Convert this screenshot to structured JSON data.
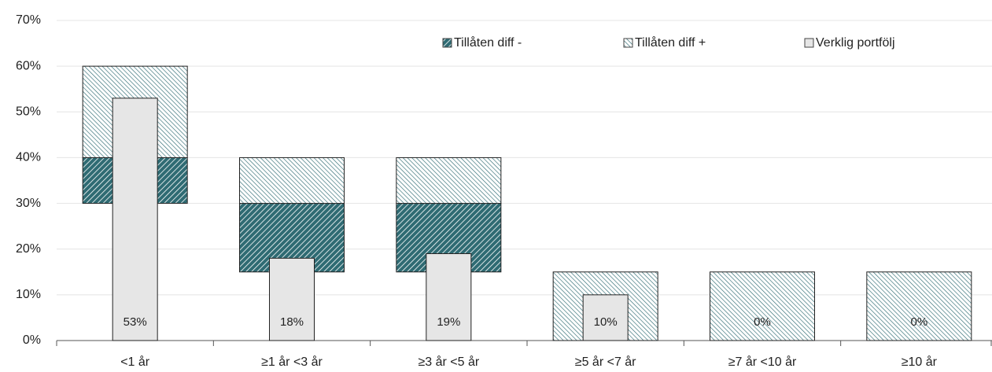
{
  "chart_data": {
    "type": "bar",
    "categories": [
      "<1 år",
      "≥1 år <3 år",
      "≥3 år <5 år",
      "≥5 år <7 år",
      "≥7 år <10 år",
      "≥10 år"
    ],
    "series": [
      {
        "name": "Tillåten diff -",
        "color": "#2f6b73",
        "hatch": "dense",
        "values": [
          [
            30,
            40
          ],
          [
            15,
            30
          ],
          [
            15,
            30
          ],
          [
            0,
            0
          ],
          [
            0,
            0
          ],
          [
            0,
            0
          ]
        ]
      },
      {
        "name": "Tillåten diff +",
        "color": "#2f6b73",
        "hatch": "light",
        "values": [
          [
            40,
            60
          ],
          [
            30,
            40
          ],
          [
            30,
            40
          ],
          [
            0,
            15
          ],
          [
            0,
            15
          ],
          [
            0,
            15
          ]
        ]
      },
      {
        "name": "Verklig portfölj",
        "color": "#e6e6e6",
        "values": [
          53,
          18,
          19,
          10,
          0,
          0
        ],
        "value_labels": [
          "53%",
          "18%",
          "19%",
          "10%",
          "0%",
          "0%"
        ]
      }
    ],
    "ylim": [
      0,
      70
    ],
    "yticks": [
      {
        "value": 0,
        "label": "0%"
      },
      {
        "value": 10,
        "label": "10%"
      },
      {
        "value": 20,
        "label": "20%"
      },
      {
        "value": 30,
        "label": "30%"
      },
      {
        "value": 40,
        "label": "40%"
      },
      {
        "value": 50,
        "label": "50%"
      },
      {
        "value": 60,
        "label": "60%"
      },
      {
        "value": 70,
        "label": "70%"
      }
    ],
    "grid": true,
    "legend": "top-right"
  }
}
